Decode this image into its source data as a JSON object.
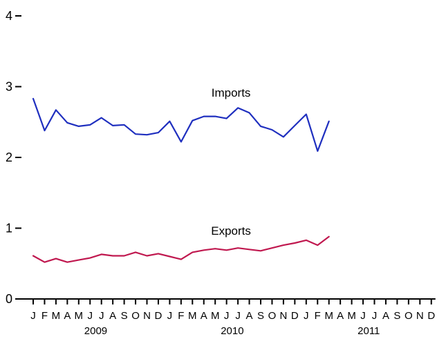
{
  "chart_data": {
    "type": "line",
    "title": "",
    "xlabel": "",
    "ylabel": "",
    "ylim": [
      0,
      4
    ],
    "y_ticks": [
      0,
      1,
      2,
      3,
      4
    ],
    "grid": false,
    "legend": "none (series labeled inline)",
    "month_tick_labels": [
      "J",
      "F",
      "M",
      "A",
      "M",
      "J",
      "J",
      "A",
      "S",
      "O",
      "N",
      "D",
      "J",
      "F",
      "M",
      "A",
      "M",
      "J",
      "J",
      "A",
      "S",
      "O",
      "N",
      "D",
      "J",
      "F",
      "M",
      "A",
      "M",
      "J",
      "J",
      "A",
      "S",
      "O",
      "N",
      "D"
    ],
    "year_labels": [
      "2009",
      "2010",
      "2011"
    ],
    "x_start": "2009-01",
    "x_end": "2011-12",
    "series": [
      {
        "name": "Imports",
        "color": "#1f2fbf",
        "values": [
          2.83,
          2.38,
          2.67,
          2.49,
          2.44,
          2.46,
          2.56,
          2.45,
          2.46,
          2.33,
          2.32,
          2.35,
          2.51,
          2.22,
          2.52,
          2.58,
          2.58,
          2.55,
          2.7,
          2.63,
          2.44,
          2.39,
          2.29,
          2.45,
          2.61,
          2.09,
          2.51
        ]
      },
      {
        "name": "Exports",
        "color": "#c0184f",
        "values": [
          0.61,
          0.52,
          0.57,
          0.52,
          0.55,
          0.58,
          0.63,
          0.61,
          0.61,
          0.66,
          0.61,
          0.64,
          0.6,
          0.56,
          0.66,
          0.69,
          0.71,
          0.69,
          0.72,
          0.7,
          0.68,
          0.72,
          0.76,
          0.79,
          0.83,
          0.76,
          0.88
        ]
      }
    ]
  }
}
